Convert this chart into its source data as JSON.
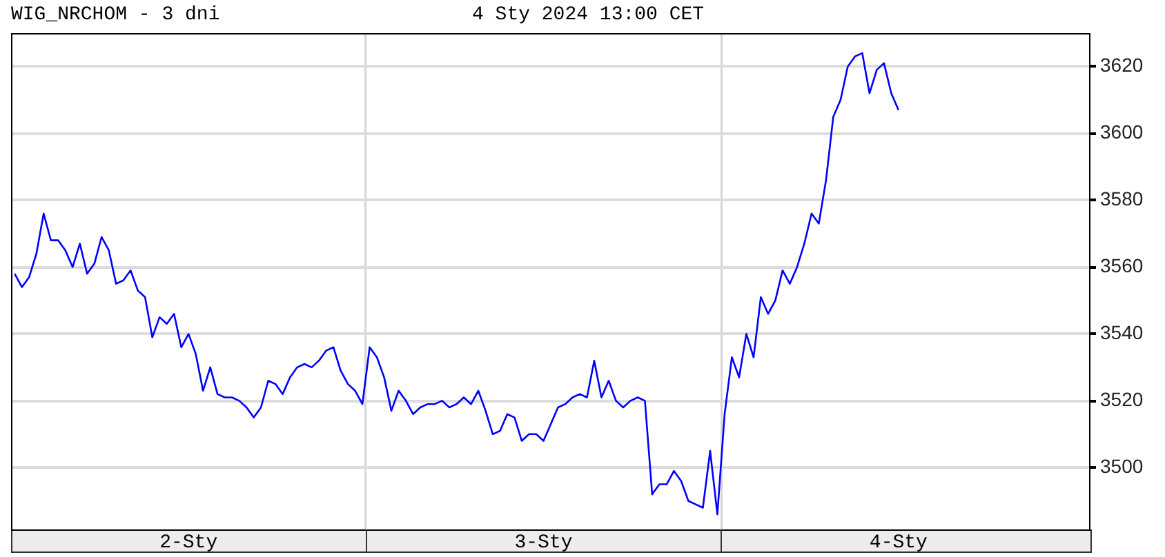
{
  "chart_data": {
    "type": "line",
    "title": "WIG_NRCHOM - 3 dni",
    "subtitle": "4 Sty 2024 13:00 CET",
    "categories": [
      null,
      null,
      null,
      null,
      null,
      null,
      null,
      null,
      null,
      null,
      null,
      null,
      null,
      null,
      null,
      null,
      null,
      null,
      null,
      null,
      null,
      null,
      null,
      null,
      "2-Sty",
      null,
      null,
      null,
      null,
      null,
      null,
      null,
      null,
      null,
      null,
      null,
      null,
      null,
      null,
      null,
      null,
      null,
      null,
      null,
      null,
      null,
      null,
      null,
      null,
      null,
      null,
      null,
      null,
      null,
      null,
      null,
      null,
      null,
      null,
      null,
      null,
      null,
      null,
      null,
      null,
      null,
      null,
      null,
      null,
      null,
      null,
      null,
      null,
      "3-Sty",
      null,
      null,
      null,
      null,
      null,
      null,
      null,
      null,
      null,
      null,
      null,
      null,
      null,
      null,
      null,
      null,
      null,
      null,
      null,
      null,
      null,
      null,
      null,
      null,
      null,
      null,
      null,
      null,
      null,
      null,
      null,
      null,
      null,
      null,
      null,
      null,
      null,
      null,
      null,
      null,
      null,
      null,
      null,
      null,
      null,
      null,
      null,
      null,
      "4-Sty",
      null,
      null,
      null,
      null,
      null,
      null,
      null,
      null,
      null,
      null,
      null,
      null,
      null,
      null,
      null,
      null,
      null,
      null,
      null,
      null,
      null,
      null,
      null,
      null,
      null,
      null
    ],
    "values": [
      3558,
      3554,
      3557,
      3564,
      3576,
      3568,
      3568,
      3565,
      3560,
      3567,
      3558,
      3561,
      3569,
      3565,
      3555,
      3556,
      3559,
      3553,
      3551,
      3539,
      3545,
      3543,
      3546,
      3536,
      3540,
      3534,
      3523,
      3530,
      3522,
      3521,
      3521,
      3520,
      3518,
      3515,
      3518,
      3526,
      3525,
      3522,
      3527,
      3530,
      3531,
      3530,
      3532,
      3535,
      3536,
      3529,
      3525,
      3523,
      3519,
      3536,
      3533,
      3527,
      3517,
      3523,
      3520,
      3516,
      3518,
      3519,
      3519,
      3520,
      3518,
      3519,
      3521,
      3519,
      3523,
      3517,
      3510,
      3511,
      3516,
      3515,
      3508,
      3510,
      3510,
      3508,
      3513,
      3518,
      3519,
      3521,
      3522,
      3521,
      3532,
      3521,
      3526,
      3520,
      3518,
      3520,
      3521,
      3520,
      3492,
      3495,
      3495,
      3499,
      3496,
      3490,
      3489,
      3488,
      3505,
      3486,
      3516,
      3533,
      3527,
      3540,
      3533,
      3551,
      3546,
      3550,
      3559,
      3555,
      3560,
      3567,
      3576,
      3573,
      3586,
      3605,
      3610,
      3620,
      3623,
      3624,
      3612,
      3619,
      3621,
      3612,
      3607,
      null,
      null,
      null,
      null,
      null,
      null,
      null,
      null,
      null,
      null,
      null,
      null,
      null,
      null,
      null,
      null,
      null,
      null,
      null,
      null,
      null,
      null,
      null,
      null,
      null,
      null
    ],
    "color": "#0000ff",
    "ylim": [
      3481.5,
      3630
    ],
    "yticks": [
      3500,
      3520,
      3540,
      3560,
      3580,
      3600,
      3620
    ],
    "grid": true,
    "marker": "none",
    "line_style": "solid"
  }
}
